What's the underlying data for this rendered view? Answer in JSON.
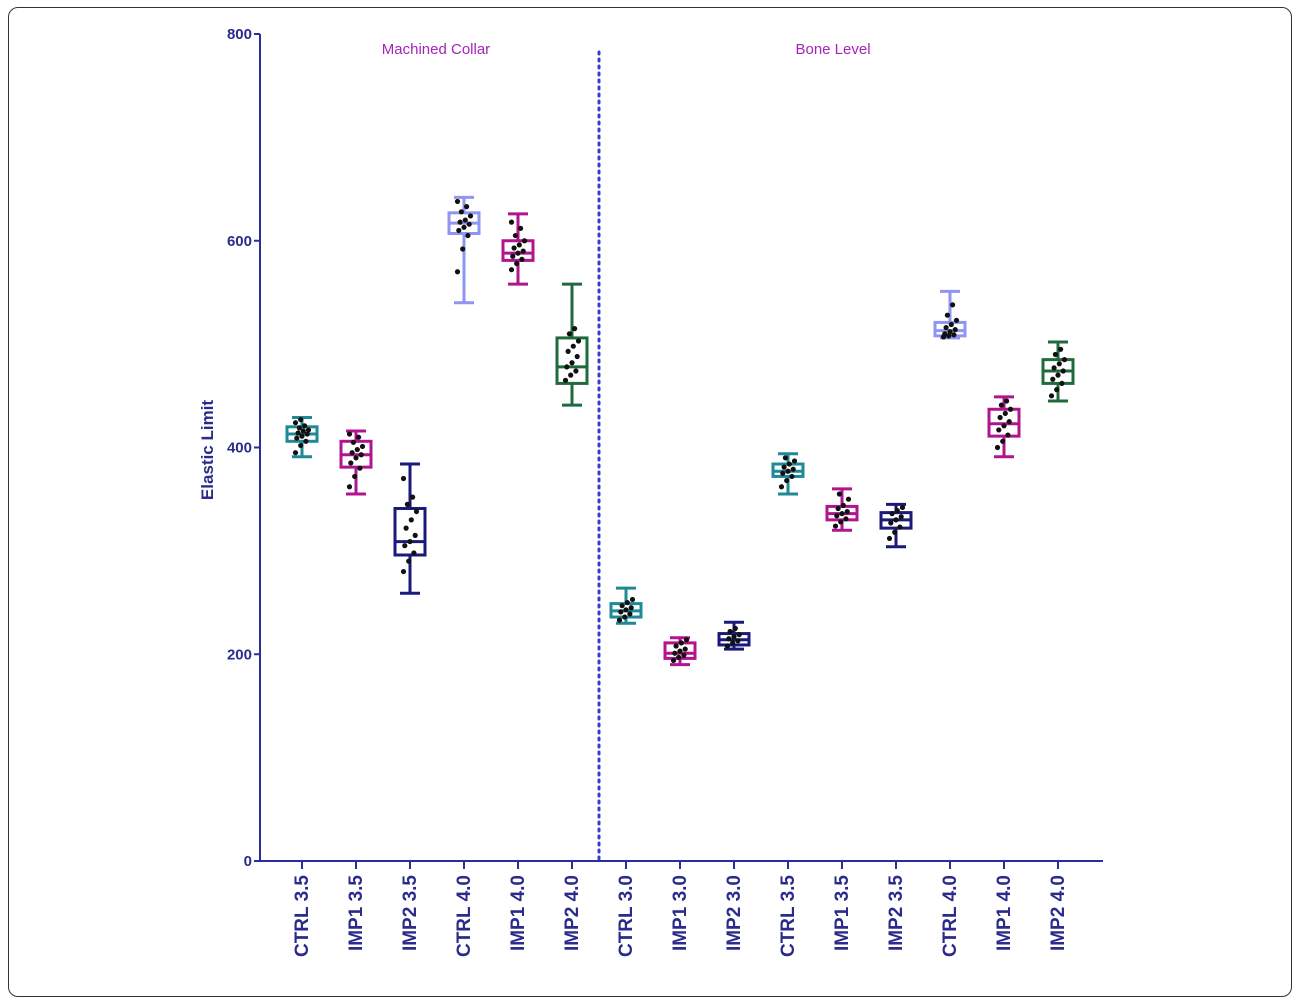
{
  "chart_data": {
    "type": "box",
    "title": "",
    "ylabel": "Elastic Limit",
    "xlabel": "",
    "ylim": [
      0,
      800
    ],
    "yticks": [
      "0",
      "200",
      "400",
      "600",
      "800"
    ],
    "grid": false,
    "legend": "none",
    "groups": [
      {
        "label": "Machined Collar",
        "start": 0,
        "end": 5
      },
      {
        "label": "Bone Level",
        "start": 6,
        "end": 14
      }
    ],
    "divider_after_index": 5,
    "colors": {
      "axis": "#2d2d9a",
      "group_title": "#a324b8",
      "tick_text": "#2b2b8c",
      "point": "#111111",
      "divider": "#3a3ad0"
    },
    "boxes": [
      {
        "label": "CTRL 3.5",
        "color": "#1f8a96",
        "min": 391,
        "q1": 406,
        "median": 413,
        "q3": 420,
        "max": 429,
        "points": [
          395,
          402,
          406,
          409,
          411,
          413,
          414,
          416,
          417,
          419,
          421,
          424,
          427
        ]
      },
      {
        "label": "IMP1 3.5",
        "color": "#b0158f",
        "min": 355,
        "q1": 381,
        "median": 393,
        "q3": 406,
        "max": 416,
        "points": [
          362,
          372,
          380,
          385,
          390,
          393,
          395,
          398,
          401,
          405,
          410,
          413
        ]
      },
      {
        "label": "IMP2 3.5",
        "color": "#1a1a7a",
        "min": 259,
        "q1": 296,
        "median": 309,
        "q3": 341,
        "max": 384,
        "points": [
          280,
          290,
          298,
          305,
          309,
          315,
          322,
          330,
          338,
          345,
          352,
          370
        ]
      },
      {
        "label": "CTRL 4.0",
        "color": "#8f95f0",
        "min": 540,
        "q1": 607,
        "median": 617,
        "q3": 627,
        "max": 642,
        "points": [
          570,
          592,
          605,
          610,
          613,
          616,
          618,
          620,
          624,
          628,
          633,
          638
        ]
      },
      {
        "label": "IMP1 4.0",
        "color": "#b0158f",
        "min": 558,
        "q1": 581,
        "median": 588,
        "q3": 600,
        "max": 626,
        "points": [
          572,
          578,
          582,
          585,
          588,
          590,
          593,
          596,
          600,
          605,
          612,
          618
        ]
      },
      {
        "label": "IMP2 4.0",
        "color": "#1f6b3e",
        "min": 441,
        "q1": 462,
        "median": 478,
        "q3": 506,
        "max": 558,
        "points": [
          465,
          470,
          474,
          478,
          482,
          488,
          493,
          498,
          503,
          510,
          515
        ]
      },
      {
        "label": "CTRL 3.0",
        "color": "#1f8a96",
        "min": 230,
        "q1": 236,
        "median": 242,
        "q3": 249,
        "max": 264,
        "points": [
          233,
          236,
          239,
          241,
          243,
          245,
          247,
          250,
          253
        ]
      },
      {
        "label": "IMP1 3.0",
        "color": "#b0158f",
        "min": 190,
        "q1": 196,
        "median": 201,
        "q3": 211,
        "max": 216,
        "points": [
          194,
          197,
          199,
          201,
          203,
          205,
          208,
          211,
          214
        ]
      },
      {
        "label": "IMP2 3.0",
        "color": "#1a1a7a",
        "min": 205,
        "q1": 209,
        "median": 214,
        "q3": 220,
        "max": 231,
        "points": [
          208,
          211,
          213,
          215,
          217,
          219,
          222,
          225
        ]
      },
      {
        "label": "CTRL 3.5",
        "color": "#1f8a96",
        "min": 355,
        "q1": 372,
        "median": 377,
        "q3": 384,
        "max": 394,
        "points": [
          362,
          368,
          372,
          375,
          377,
          379,
          381,
          384,
          387,
          390
        ]
      },
      {
        "label": "IMP1 3.5",
        "color": "#b0158f",
        "min": 320,
        "q1": 330,
        "median": 336,
        "q3": 343,
        "max": 360,
        "points": [
          324,
          328,
          331,
          334,
          336,
          338,
          341,
          344,
          350,
          355
        ]
      },
      {
        "label": "IMP2 3.5",
        "color": "#1a1a7a",
        "min": 304,
        "q1": 322,
        "median": 330,
        "q3": 337,
        "max": 345,
        "points": [
          312,
          318,
          323,
          327,
          330,
          333,
          336,
          339,
          342
        ]
      },
      {
        "label": "CTRL 4.0",
        "color": "#8f95f0",
        "min": 506,
        "q1": 508,
        "median": 513,
        "q3": 521,
        "max": 551,
        "points": [
          507,
          508,
          509,
          510,
          512,
          514,
          516,
          519,
          523,
          528,
          538
        ]
      },
      {
        "label": "IMP1 4.0",
        "color": "#b0158f",
        "min": 391,
        "q1": 411,
        "median": 423,
        "q3": 437,
        "max": 449,
        "points": [
          400,
          406,
          412,
          417,
          421,
          425,
          429,
          433,
          437,
          441,
          445
        ]
      },
      {
        "label": "IMP2 4.0",
        "color": "#1f6b3e",
        "min": 445,
        "q1": 462,
        "median": 474,
        "q3": 485,
        "max": 502,
        "points": [
          450,
          456,
          462,
          466,
          470,
          474,
          477,
          481,
          485,
          490,
          495
        ]
      }
    ]
  }
}
